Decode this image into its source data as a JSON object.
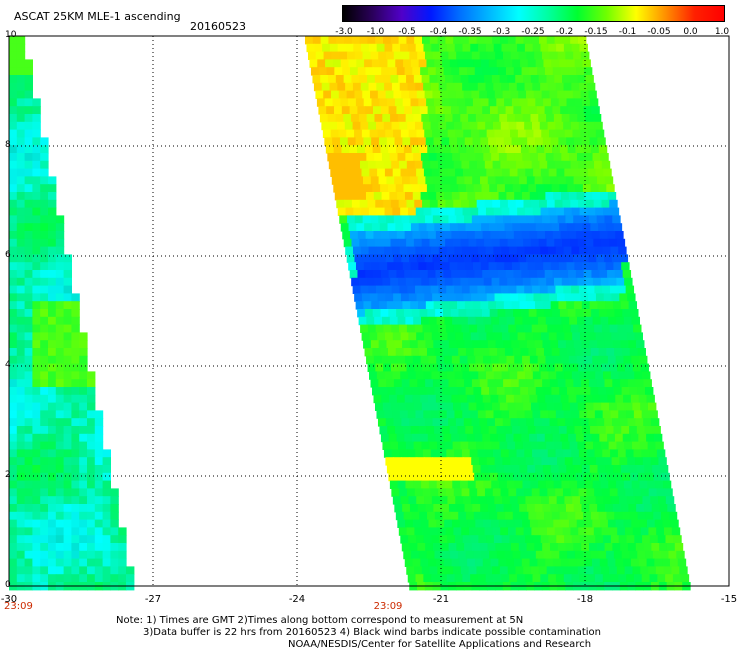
{
  "header": {
    "title": "ASCAT 25KM MLE-1 ascending",
    "date": "20160523"
  },
  "colorbar": {
    "labels": [
      "-3.0",
      "-1.0",
      "-0.5",
      "-0.4",
      "-0.35",
      "-0.3",
      "-0.25",
      "-0.2",
      "-0.15",
      "-0.1",
      "-0.05",
      "0.0",
      "1.0"
    ],
    "colors": [
      "#000000",
      "#2a005a",
      "#5000c8",
      "#0018ff",
      "#0070ff",
      "#00b8ff",
      "#00ffff",
      "#00ffa0",
      "#00ff30",
      "#70ff00",
      "#ffff00",
      "#ff9000",
      "#ff2000",
      "#ff0000"
    ]
  },
  "axes": {
    "y_ticks": [
      "0",
      "2",
      "4",
      "6",
      "8",
      "10"
    ],
    "x_ticks": [
      "-30",
      "-27",
      "-24",
      "-21",
      "-18",
      "-15"
    ],
    "x_range": [
      -30,
      -15
    ],
    "y_range": [
      0,
      10
    ],
    "grid": "dotted"
  },
  "passes": [
    {
      "time": "23:09",
      "x_label_at": -30
    },
    {
      "time": "23:09",
      "x_label_at": -22.3
    }
  ],
  "footer": {
    "note_line1": "Note: 1) Times are GMT 2)Times along bottom correspond to measurement at 5N",
    "note_line2": "3)Data buffer is 22 hrs from 20160523 4) Black wind barbs indicate possible contamination",
    "credit": "NOAA/NESDIS/Center for Satellite Applications and Research"
  }
}
